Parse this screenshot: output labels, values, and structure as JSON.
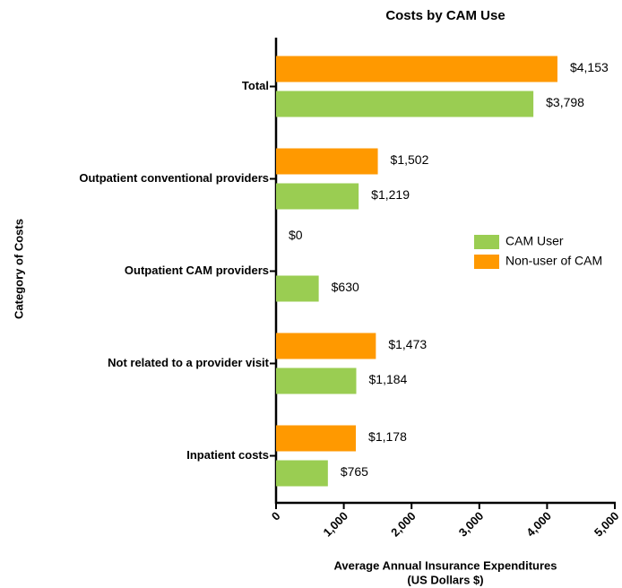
{
  "chart_data": {
    "type": "hbar",
    "title": "Costs by CAM Use",
    "categories": [
      "Total",
      "Outpatient conventional providers",
      "Outpatient CAM providers",
      "Not related to a provider visit",
      "Inpatient costs"
    ],
    "series": [
      {
        "name": "CAM User",
        "color": "#9acd52",
        "values": [
          3798,
          1219,
          630,
          1184,
          765
        ],
        "value_labels": [
          "$3,798",
          "$1,219",
          "$630",
          "$1,184",
          "$765"
        ]
      },
      {
        "name": "Non-user of CAM",
        "color": "#ff9900",
        "values": [
          4153,
          1502,
          0,
          1473,
          1178
        ],
        "value_labels": [
          "$4,153",
          "$1,502",
          "$0",
          "$1,473",
          "$1,178"
        ]
      }
    ],
    "x_label": [
      "Average Annual Insurance Expenditures",
      "(US Dollars $)"
    ],
    "y_label": "Category of Costs",
    "xlim": [
      0,
      5000
    ],
    "xticks": [
      0,
      {
        "value": 1000,
        "label": "1,000"
      },
      {
        "value": 2000,
        "label": "2,000"
      },
      {
        "value": 3000,
        "label": "3,000"
      },
      {
        "value": 4000,
        "label": "4,000"
      },
      {
        "value": 5000,
        "label": "5,000"
      }
    ],
    "legend": "right"
  }
}
